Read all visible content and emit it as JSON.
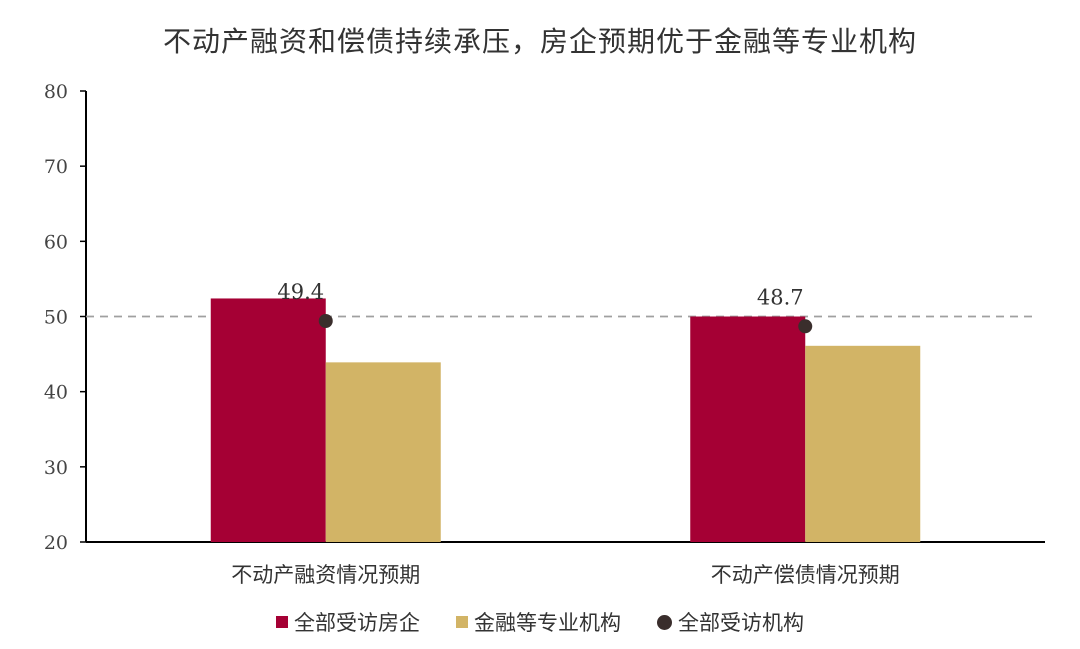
{
  "chart_data": {
    "type": "bar",
    "title": "不动产融资和偿债持续承压，房企预期优于金融等专业机构",
    "categories": [
      "不动产融资情况预期",
      "不动产偿债情况预期"
    ],
    "series": [
      {
        "name": "全部受访房企",
        "values": [
          52.4,
          50.0
        ],
        "color": "#A50034",
        "kind": "bar"
      },
      {
        "name": "金融等专业机构",
        "values": [
          43.9,
          46.1
        ],
        "color": "#D2B466",
        "kind": "bar"
      },
      {
        "name": "全部受访机构",
        "values": [
          49.4,
          48.7
        ],
        "color": "#3A2E2C",
        "kind": "point"
      }
    ],
    "data_labels": [
      "49.4",
      "48.7"
    ],
    "reference_line": 50,
    "ylim": [
      20,
      80
    ],
    "yticks": [
      20,
      30,
      40,
      50,
      60,
      70,
      80
    ],
    "legend_position": "bottom",
    "grid": false
  }
}
